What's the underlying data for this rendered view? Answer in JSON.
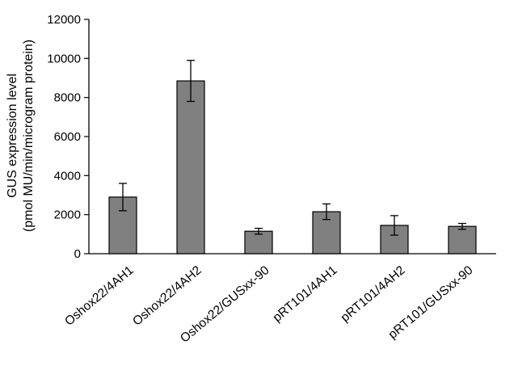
{
  "chart_data": {
    "type": "bar",
    "title": "",
    "xlabel": "",
    "ylabel_lines": [
      "GUS expression level",
      "(pmol MU/min/microgram protein)"
    ],
    "categories": [
      "Oshox22/4AH1",
      "Oshox22/4AH2",
      "Oshox22/GUSxx-90",
      "pRT101/4AH1",
      "pRT101/4AH2",
      "pRT101/GUSxx-90"
    ],
    "values": [
      2900,
      8850,
      1150,
      2150,
      1450,
      1400
    ],
    "errors": [
      700,
      1050,
      150,
      400,
      500,
      150
    ],
    "ylim": [
      0,
      12000
    ],
    "yticks": [
      "0",
      "2000",
      "4000",
      "6000",
      "8000",
      "10000",
      "12000"
    ],
    "ytick_values": [
      0,
      2000,
      4000,
      6000,
      8000,
      10000,
      12000
    ],
    "grid": false,
    "bar_color": "#808080"
  }
}
